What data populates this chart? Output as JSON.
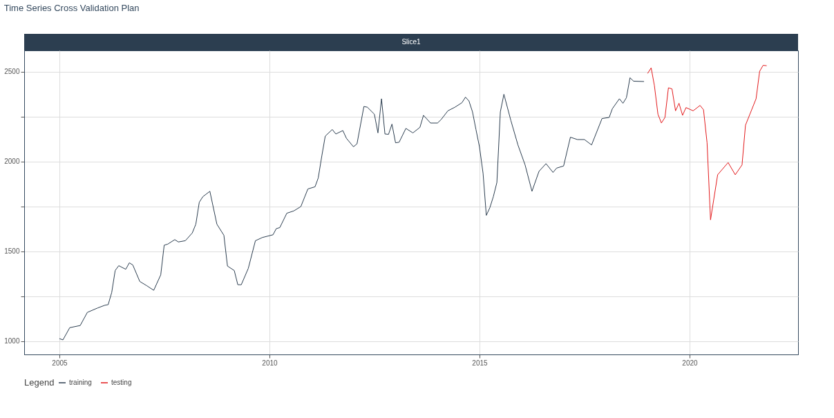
{
  "chart_data": {
    "type": "line",
    "title": "Time Series Cross Validation Plan",
    "subtitle": "Slice1",
    "legend_title": "Legend",
    "legend": "bottom",
    "grid": true,
    "line_style": "solid",
    "marker": "none",
    "xlim": [
      "2004-03",
      "2022-08"
    ],
    "xticks": [
      "2005",
      "2010",
      "2015",
      "2020"
    ],
    "ylim": [
      926,
      2618
    ],
    "yticks": [
      1000,
      {
        "value": 1250,
        "label": null
      },
      1500,
      {
        "value": 1750,
        "label": null
      },
      2000,
      {
        "value": 2250,
        "label": null
      },
      2500
    ],
    "series": [
      {
        "name": "training",
        "color": "#2c3e50",
        "x": [
          "2005-01",
          "2005-02",
          "2005-04",
          "2005-07",
          "2005-09",
          "2005-12",
          "2006-02",
          "2006-03",
          "2006-04",
          "2006-05",
          "2006-06",
          "2006-08",
          "2006-09",
          "2006-10",
          "2006-12",
          "2007-02",
          "2007-04",
          "2007-06",
          "2007-07",
          "2007-08",
          "2007-10",
          "2007-11",
          "2008-01",
          "2008-03",
          "2008-04",
          "2008-05",
          "2008-06",
          "2008-08",
          "2008-10",
          "2008-12",
          "2009-01",
          "2009-03",
          "2009-04",
          "2009-05",
          "2009-07",
          "2009-09",
          "2009-11",
          "2010-02",
          "2010-03",
          "2010-04",
          "2010-06",
          "2010-08",
          "2010-10",
          "2010-12",
          "2011-02",
          "2011-03",
          "2011-04",
          "2011-05",
          "2011-07",
          "2011-08",
          "2011-10",
          "2011-11",
          "2012-01",
          "2012-02",
          "2012-04",
          "2012-05",
          "2012-07",
          "2012-08",
          "2012-09",
          "2012-10",
          "2012-11",
          "2012-12",
          "2013-01",
          "2013-02",
          "2013-04",
          "2013-06",
          "2013-08",
          "2013-09",
          "2013-11",
          "2014-01",
          "2014-02",
          "2014-04",
          "2014-06",
          "2014-08",
          "2014-09",
          "2014-10",
          "2014-11",
          "2014-12",
          "2015-01",
          "2015-02",
          "2015-03",
          "2015-04",
          "2015-05",
          "2015-06",
          "2015-07",
          "2015-08",
          "2015-10",
          "2015-12",
          "2016-02",
          "2016-04",
          "2016-06",
          "2016-08",
          "2016-10",
          "2016-11",
          "2017-01",
          "2017-03",
          "2017-05",
          "2017-07",
          "2017-09",
          "2017-12",
          "2018-02",
          "2018-03",
          "2018-05",
          "2018-06",
          "2018-07",
          "2018-08",
          "2018-09",
          "2018-12"
        ],
        "values": [
          1014,
          1007,
          1075,
          1087,
          1160,
          1185,
          1200,
          1203,
          1271,
          1393,
          1420,
          1400,
          1436,
          1424,
          1332,
          1308,
          1283,
          1369,
          1534,
          1540,
          1565,
          1552,
          1559,
          1602,
          1651,
          1773,
          1804,
          1834,
          1651,
          1589,
          1418,
          1393,
          1314,
          1314,
          1405,
          1559,
          1577,
          1592,
          1626,
          1632,
          1712,
          1725,
          1749,
          1847,
          1859,
          1908,
          2030,
          2141,
          2178,
          2153,
          2172,
          2129,
          2082,
          2098,
          2306,
          2302,
          2263,
          2159,
          2349,
          2153,
          2151,
          2208,
          2104,
          2107,
          2184,
          2159,
          2190,
          2257,
          2214,
          2214,
          2233,
          2282,
          2302,
          2327,
          2358,
          2337,
          2276,
          2178,
          2080,
          1933,
          1700,
          1743,
          1804,
          1883,
          2276,
          2374,
          2227,
          2092,
          1981,
          1834,
          1945,
          1988,
          1939,
          1963,
          1975,
          2135,
          2122,
          2122,
          2092,
          2239,
          2245,
          2294,
          2349,
          2324,
          2355,
          2466,
          2447,
          2445
        ]
      },
      {
        "name": "testing",
        "color": "#e31a1c",
        "x": [
          "2019-01",
          "2019-02",
          "2019-03",
          "2019-04",
          "2019-05",
          "2019-06",
          "2019-07",
          "2019-08",
          "2019-09",
          "2019-10",
          "2019-11",
          "2019-12",
          "2020-02",
          "2020-04",
          "2020-05",
          "2020-06",
          "2020-07",
          "2020-09",
          "2020-12",
          "2021-02",
          "2021-04",
          "2021-05",
          "2021-08",
          "2021-09",
          "2021-10",
          "2021-11"
        ],
        "values": [
          2490,
          2521,
          2423,
          2263,
          2214,
          2245,
          2410,
          2404,
          2282,
          2324,
          2257,
          2300,
          2282,
          2312,
          2288,
          2104,
          1675,
          1926,
          1994,
          1926,
          1981,
          2202,
          2349,
          2502,
          2535,
          2533
        ]
      }
    ]
  }
}
